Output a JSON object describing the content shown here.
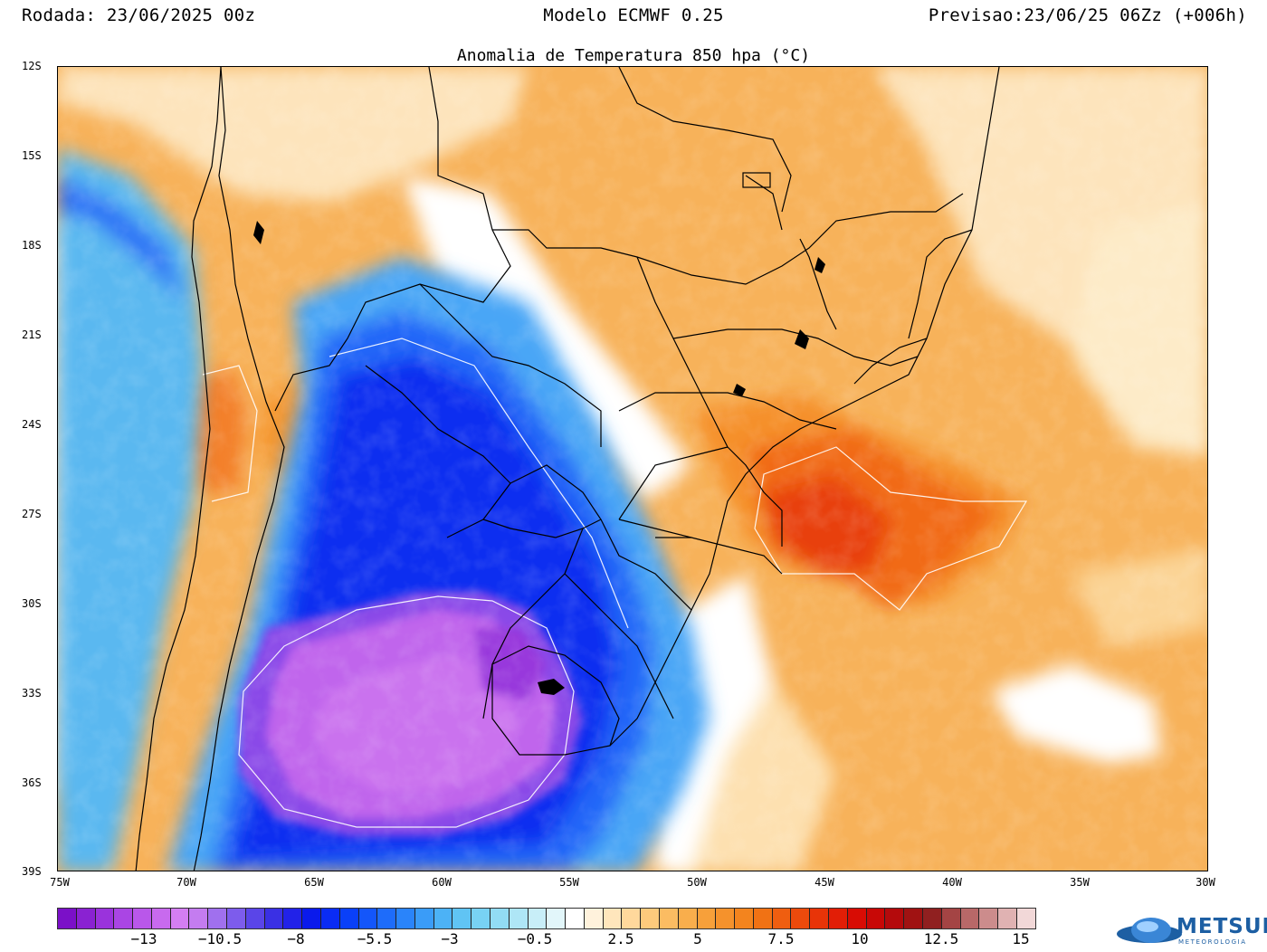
{
  "header": {
    "run": "Rodada: 23/06/2025 00z",
    "model": "Modelo ECMWF 0.25",
    "forecast": "Previsao:23/06/25 06Zz (+006h)"
  },
  "map": {
    "title": "Anomalia de Temperatura 850 hpa (°C)",
    "lat_labels": [
      "12S",
      "15S",
      "18S",
      "21S",
      "24S",
      "27S",
      "30S",
      "33S",
      "36S",
      "39S"
    ],
    "lon_labels": [
      "75W",
      "70W",
      "65W",
      "60W",
      "55W",
      "50W",
      "45W",
      "40W",
      "35W",
      "30W"
    ]
  },
  "colorbar": {
    "labels": [
      "−13",
      "−10.5",
      "−8",
      "−5.5",
      "−3",
      "−0.5",
      "2.5",
      "5",
      "7.5",
      "10",
      "12.5",
      "15"
    ],
    "colors": [
      "#7b10c8",
      "#8a22d2",
      "#9a33dc",
      "#aa45e4",
      "#b957ea",
      "#c86aee",
      "#d47ef2",
      "#c47cf0",
      "#a070ee",
      "#7d5cec",
      "#5a45e8",
      "#3a30e4",
      "#2222e8",
      "#0a1aec",
      "#0a2cf4",
      "#0a40f8",
      "#1456fa",
      "#1e6cfa",
      "#2a84fa",
      "#3a9cf8",
      "#4cb2f6",
      "#60c4f4",
      "#78d2f4",
      "#92dcf4",
      "#aee6f6",
      "#c8eef8",
      "#e2f6fa",
      "#ffffff",
      "#fff2dc",
      "#ffe6bc",
      "#ffd89c",
      "#fdca7c",
      "#fbbc62",
      "#f9ae4c",
      "#f7a03a",
      "#f5922c",
      "#f3841e",
      "#f17214",
      "#ef5e10",
      "#ec4a0c",
      "#e83408",
      "#e21e06",
      "#d80c04",
      "#c80806",
      "#b40a0c",
      "#a01212",
      "#902020",
      "#a44444",
      "#b86868",
      "#cc8c8c",
      "#e0b2b2",
      "#f2d8d8"
    ]
  },
  "logo": {
    "name": "METSUL",
    "subtitle": "METEOROLOGIA"
  }
}
